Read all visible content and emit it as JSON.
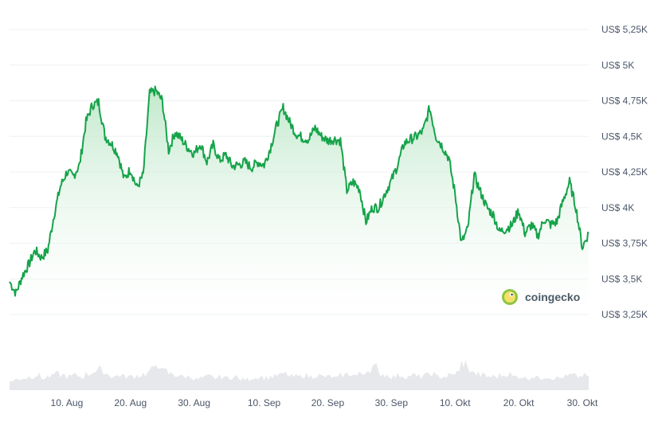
{
  "chart_data": {
    "type": "area",
    "title": "",
    "xlabel": "",
    "ylabel": "",
    "x_tick_labels": [
      "10. Aug",
      "20. Aug",
      "30. Aug",
      "10. Sep",
      "20. Sep",
      "30. Sep",
      "10. Okt",
      "20. Okt",
      "30. Okt"
    ],
    "y_tick_labels": [
      "US$ 3,25K",
      "US$ 3,5K",
      "US$ 3,75K",
      "US$ 4K",
      "US$ 4,25K",
      "US$ 4,5K",
      "US$ 4,75K",
      "US$ 5K",
      "US$ 5,25K"
    ],
    "y_tick_values": [
      3250,
      3500,
      3750,
      4000,
      4250,
      4500,
      4750,
      5000,
      5250
    ],
    "ylim": [
      3250,
      5250
    ],
    "x_start": "2025-08-01",
    "grid": true,
    "series": [
      {
        "x": [
          "2025-08-01",
          "2025-08-02",
          "2025-08-03",
          "2025-08-04",
          "2025-08-05",
          "2025-08-06",
          "2025-08-07",
          "2025-08-08",
          "2025-08-09",
          "2025-08-10",
          "2025-08-11",
          "2025-08-12",
          "2025-08-13",
          "2025-08-14",
          "2025-08-15",
          "2025-08-16",
          "2025-08-17",
          "2025-08-18",
          "2025-08-19",
          "2025-08-20",
          "2025-08-21",
          "2025-08-22",
          "2025-08-23",
          "2025-08-24",
          "2025-08-25",
          "2025-08-26",
          "2025-08-27",
          "2025-08-28",
          "2025-08-29",
          "2025-08-30",
          "2025-08-31",
          "2025-09-01",
          "2025-09-02",
          "2025-09-03",
          "2025-09-04",
          "2025-09-05",
          "2025-09-06",
          "2025-09-07",
          "2025-09-08",
          "2025-09-09",
          "2025-09-10",
          "2025-09-11",
          "2025-09-12",
          "2025-09-13",
          "2025-09-14",
          "2025-09-15",
          "2025-09-16",
          "2025-09-17",
          "2025-09-18",
          "2025-09-19",
          "2025-09-20",
          "2025-09-21",
          "2025-09-22",
          "2025-09-23",
          "2025-09-24",
          "2025-09-25",
          "2025-09-26",
          "2025-09-27",
          "2025-09-28",
          "2025-09-29",
          "2025-09-30",
          "2025-10-01",
          "2025-10-02",
          "2025-10-03",
          "2025-10-04",
          "2025-10-05",
          "2025-10-06",
          "2025-10-07",
          "2025-10-08",
          "2025-10-09",
          "2025-10-10",
          "2025-10-11",
          "2025-10-12",
          "2025-10-13",
          "2025-10-14",
          "2025-10-15",
          "2025-10-16",
          "2025-10-17",
          "2025-10-18",
          "2025-10-19",
          "2025-10-20",
          "2025-10-21",
          "2025-10-22",
          "2025-10-23",
          "2025-10-24",
          "2025-10-25",
          "2025-10-26",
          "2025-10-27",
          "2025-10-28",
          "2025-10-29",
          "2025-10-30",
          "2025-10-31"
        ],
        "values": [
          3480,
          3400,
          3520,
          3600,
          3700,
          3650,
          3700,
          3950,
          4150,
          4250,
          4220,
          4300,
          4600,
          4720,
          4740,
          4500,
          4450,
          4380,
          4200,
          4270,
          4140,
          4230,
          4800,
          4820,
          4750,
          4400,
          4530,
          4480,
          4420,
          4380,
          4450,
          4320,
          4440,
          4330,
          4370,
          4290,
          4300,
          4320,
          4280,
          4320,
          4300,
          4420,
          4580,
          4700,
          4600,
          4520,
          4490,
          4480,
          4560,
          4500,
          4470,
          4480,
          4470,
          4120,
          4180,
          4130,
          3900,
          4000,
          4000,
          4100,
          4190,
          4300,
          4450,
          4480,
          4500,
          4540,
          4700,
          4500,
          4430,
          4350,
          4100,
          3750,
          3850,
          4230,
          4110,
          4000,
          3950,
          3830,
          3850,
          3880,
          3980,
          3820,
          3880,
          3800,
          3920,
          3880,
          3900,
          4050,
          4180,
          4000,
          3720,
          3820
        ]
      }
    ],
    "volume": [
      0.35,
      0.4,
      0.45,
      0.5,
      0.55,
      0.45,
      0.5,
      0.6,
      0.55,
      0.5,
      0.55,
      0.5,
      0.6,
      0.7,
      0.75,
      0.6,
      0.5,
      0.55,
      0.5,
      0.5,
      0.55,
      0.6,
      0.75,
      0.95,
      0.7,
      0.6,
      0.55,
      0.5,
      0.5,
      0.4,
      0.45,
      0.5,
      0.45,
      0.5,
      0.45,
      0.5,
      0.4,
      0.4,
      0.45,
      0.5,
      0.45,
      0.5,
      0.55,
      0.6,
      0.5,
      0.5,
      0.55,
      0.5,
      0.55,
      0.5,
      0.5,
      0.45,
      0.55,
      0.6,
      0.55,
      0.6,
      0.75,
      0.85,
      0.6,
      0.55,
      0.5,
      0.55,
      0.5,
      0.55,
      0.5,
      0.55,
      0.6,
      0.5,
      0.5,
      0.55,
      0.65,
      1.0,
      0.75,
      0.6,
      0.55,
      0.5,
      0.5,
      0.55,
      0.6,
      0.5,
      0.5,
      0.45,
      0.5,
      0.45,
      0.5,
      0.45,
      0.45,
      0.5,
      0.55,
      0.5,
      0.55,
      0.45
    ],
    "colors": {
      "line": "#16a34a",
      "area_top": "#bfe8c9",
      "grid": "#eef0f3",
      "volume": "#e6e8eb"
    },
    "watermark": {
      "text": "coingecko",
      "icon": "gecko-logo-icon"
    }
  }
}
